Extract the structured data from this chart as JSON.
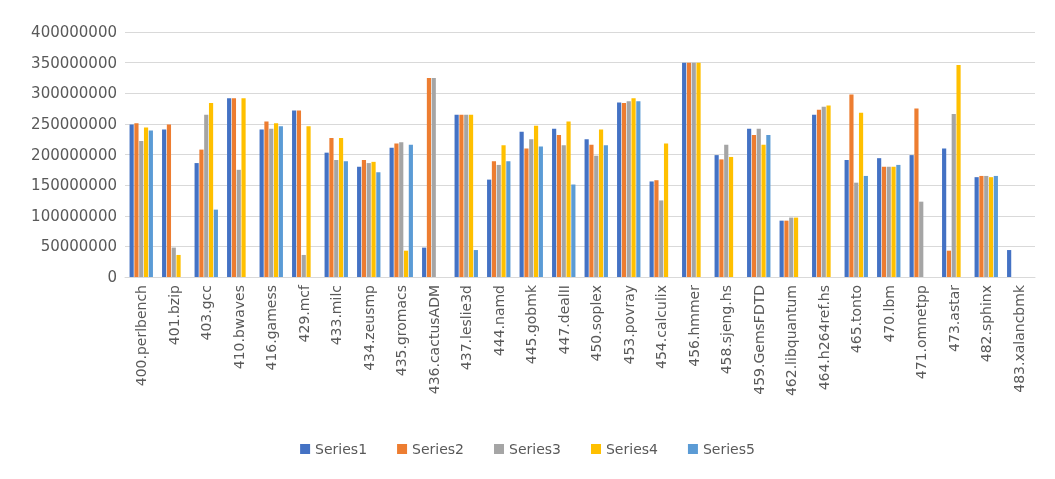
{
  "chart_data": {
    "type": "bar",
    "categories": [
      "400.perlbench",
      "401.bzip",
      "403.gcc",
      "410.bwaves",
      "416.gamess",
      "429.mcf",
      "433.milc",
      "434.zeusmp",
      "435.gromacs",
      "436.cactusADM",
      "437.leslie3d",
      "444.namd",
      "445.gobmk",
      "447.dealII",
      "450.soplex",
      "453.povray",
      "454.calculix",
      "456.hmmer",
      "458.sjeng.hs",
      "459.GemsFDTD",
      "462.libquantum",
      "464.h264ref.hs",
      "465.tonto",
      "470.lbm",
      "471.omnetpp",
      "473.astar",
      "482.sphinx",
      "483.xalancbmk"
    ],
    "series": [
      {
        "name": "Series1",
        "color": "#4472c4",
        "values": [
          249000000,
          241000000,
          186000000,
          292000000,
          241000000,
          272000000,
          203000000,
          180000000,
          211000000,
          48000000,
          265000000,
          159000000,
          237000000,
          242000000,
          225000000,
          285000000,
          156000000,
          350000000,
          199000000,
          242000000,
          92000000,
          265000000,
          191000000,
          194000000,
          199000000,
          210000000,
          163000000,
          44000000
        ]
      },
      {
        "name": "Series2",
        "color": "#ed7d31",
        "values": [
          251000000,
          249000000,
          208000000,
          292000000,
          254000000,
          272000000,
          227000000,
          191000000,
          218000000,
          325000000,
          265000000,
          189000000,
          210000000,
          232000000,
          216000000,
          284000000,
          158000000,
          350000000,
          192000000,
          232000000,
          92000000,
          273000000,
          298000000,
          180000000,
          275000000,
          43000000,
          165000000,
          null
        ]
      },
      {
        "name": "Series3",
        "color": "#a5a5a5",
        "values": [
          222000000,
          48000000,
          265000000,
          175000000,
          242000000,
          36000000,
          191000000,
          186000000,
          220000000,
          325000000,
          265000000,
          183000000,
          225000000,
          215000000,
          198000000,
          287000000,
          125000000,
          350000000,
          216000000,
          242000000,
          97000000,
          278000000,
          154000000,
          180000000,
          123000000,
          266000000,
          165000000,
          null
        ]
      },
      {
        "name": "Series4",
        "color": "#ffc000",
        "values": [
          244000000,
          36000000,
          284000000,
          292000000,
          251000000,
          246000000,
          227000000,
          188000000,
          43000000,
          null,
          265000000,
          215000000,
          247000000,
          254000000,
          241000000,
          292000000,
          218000000,
          350000000,
          196000000,
          216000000,
          97000000,
          280000000,
          268000000,
          180000000,
          null,
          346000000,
          163000000,
          null
        ]
      },
      {
        "name": "Series5",
        "color": "#5b9bd5",
        "values": [
          239000000,
          null,
          110000000,
          null,
          246000000,
          null,
          189000000,
          171000000,
          216000000,
          null,
          44000000,
          189000000,
          213000000,
          151000000,
          215000000,
          287000000,
          null,
          null,
          null,
          232000000,
          null,
          null,
          165000000,
          183000000,
          null,
          null,
          165000000,
          null
        ]
      }
    ],
    "ylim": [
      0,
      400000000
    ],
    "yticks": [
      0,
      50000000,
      100000000,
      150000000,
      200000000,
      250000000,
      300000000,
      350000000,
      400000000
    ],
    "grid": "y",
    "legend": "bottom"
  }
}
